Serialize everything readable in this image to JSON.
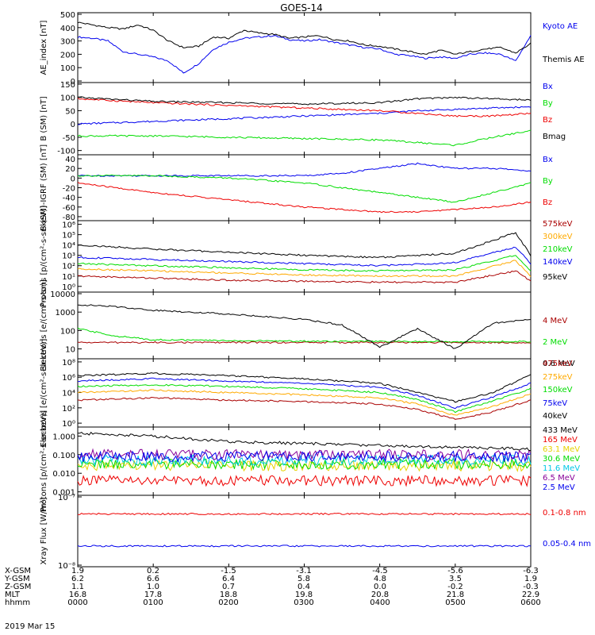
{
  "title": "GOES-14",
  "colors": {
    "black": "#000000",
    "blue": "#0000ee",
    "green": "#00dd00",
    "red": "#ee0000",
    "orange": "#ffaa00",
    "cyan": "#00c8e6",
    "purple": "#880099",
    "darkred": "#aa0000",
    "yellow": "#e6d200"
  },
  "chart_data": [
    {
      "type": "line",
      "id": "ae",
      "ylabel": "AE_index [nT]",
      "ylim": [
        0,
        500
      ],
      "yticks": [
        "0",
        "100",
        "200",
        "300",
        "400",
        "500"
      ],
      "x_range": [
        0,
        6
      ],
      "series": [
        {
          "name": "Kyoto AE",
          "color": "blue",
          "x": [
            0,
            0.2,
            0.4,
            0.6,
            0.8,
            1.0,
            1.2,
            1.4,
            1.6,
            1.8,
            2.0,
            2.2,
            2.4,
            2.6,
            2.8,
            3.0,
            3.2,
            3.4,
            3.6,
            3.8,
            4.0,
            4.2,
            4.4,
            4.6,
            4.8,
            5.0,
            5.2,
            5.4,
            5.6,
            5.8,
            6.0
          ],
          "values": [
            330,
            320,
            300,
            220,
            200,
            180,
            150,
            60,
            130,
            240,
            290,
            320,
            330,
            340,
            310,
            300,
            310,
            290,
            270,
            250,
            240,
            200,
            190,
            170,
            180,
            170,
            200,
            210,
            200,
            150,
            340
          ]
        },
        {
          "name": "Themis AE",
          "color": "black",
          "x": [
            0,
            0.2,
            0.4,
            0.6,
            0.8,
            1.0,
            1.2,
            1.4,
            1.6,
            1.8,
            2.0,
            2.2,
            2.4,
            2.6,
            2.8,
            3.0,
            3.2,
            3.4,
            3.6,
            3.8,
            4.0,
            4.2,
            4.4,
            4.6,
            4.8,
            5.0,
            5.2,
            5.4,
            5.6,
            5.8,
            6.0
          ],
          "values": [
            440,
            420,
            400,
            390,
            420,
            380,
            300,
            250,
            260,
            330,
            320,
            380,
            360,
            350,
            320,
            330,
            340,
            310,
            300,
            270,
            260,
            240,
            220,
            200,
            230,
            200,
            220,
            240,
            250,
            210,
            280
          ]
        }
      ]
    },
    {
      "type": "line",
      "id": "bsm",
      "ylabel": "B (SM) [nT]",
      "ylim": [
        -110,
        150
      ],
      "yticks": [
        "-100",
        "-50",
        "0",
        "50",
        "100",
        "150"
      ],
      "series": [
        {
          "name": "Bx",
          "color": "blue",
          "x": [
            0,
            1,
            2,
            3,
            4,
            4.5,
            5,
            5.5,
            6
          ],
          "values": [
            0,
            10,
            20,
            30,
            40,
            50,
            55,
            60,
            65
          ]
        },
        {
          "name": "By",
          "color": "green",
          "x": [
            0,
            1,
            2,
            3,
            4,
            4.5,
            5,
            5.5,
            6
          ],
          "values": [
            -45,
            -45,
            -50,
            -55,
            -60,
            -70,
            -80,
            -50,
            -25
          ]
        },
        {
          "name": "Bz",
          "color": "red",
          "x": [
            0,
            1,
            2,
            3,
            4,
            4.5,
            5,
            5.5,
            6
          ],
          "values": [
            95,
            80,
            70,
            60,
            50,
            40,
            30,
            30,
            40
          ]
        },
        {
          "name": "Bmag",
          "color": "black",
          "x": [
            0,
            1,
            2,
            3,
            4,
            4.5,
            5,
            5.5,
            6
          ],
          "values": [
            100,
            85,
            80,
            75,
            80,
            95,
            100,
            95,
            90
          ]
        }
      ]
    },
    {
      "type": "line",
      "id": "bigrf",
      "ylabel": "B (SM)-IGRF (SM) [nT]",
      "ylim": [
        -85,
        45
      ],
      "yticks": [
        "-80",
        "-60",
        "-40",
        "-20",
        "0",
        "20",
        "40"
      ],
      "series": [
        {
          "name": "Bx",
          "color": "blue",
          "x": [
            0,
            1,
            2,
            3,
            3.5,
            4,
            4.5,
            5,
            5.5,
            6
          ],
          "values": [
            5,
            5,
            5,
            5,
            10,
            20,
            30,
            20,
            20,
            15
          ]
        },
        {
          "name": "By",
          "color": "green",
          "x": [
            0,
            1,
            2,
            3,
            3.5,
            4,
            4.5,
            5,
            5.5,
            6
          ],
          "values": [
            5,
            5,
            0,
            -10,
            -20,
            -30,
            -40,
            -50,
            -30,
            -10
          ]
        },
        {
          "name": "Bz",
          "color": "red",
          "x": [
            0,
            1,
            2,
            3,
            3.5,
            4,
            4.5,
            5,
            5.5,
            6
          ],
          "values": [
            -10,
            -30,
            -45,
            -60,
            -65,
            -70,
            -70,
            -65,
            -60,
            -50
          ]
        }
      ]
    },
    {
      "type": "line",
      "id": "protons_kev",
      "log": true,
      "ylabel": "Protons [p/(cm²-s-sr-keV)]",
      "ylim_exp": [
        -0.4,
        6.2
      ],
      "ytick_exp": [
        0,
        1,
        2,
        3,
        4,
        5,
        6
      ],
      "series": [
        {
          "name": "575keV",
          "color": "darkred",
          "x": [
            0,
            1,
            2,
            3,
            4,
            5,
            5.8,
            6
          ],
          "values": [
            1.0,
            0.8,
            0.6,
            0.5,
            0.4,
            0.4,
            1.5,
            0.5
          ]
        },
        {
          "name": "300keV",
          "color": "orange",
          "x": [
            0,
            1,
            2,
            3,
            4,
            5,
            5.8,
            6
          ],
          "values": [
            1.7,
            1.5,
            1.3,
            1.1,
            1.0,
            1.0,
            2.5,
            1.0
          ]
        },
        {
          "name": "210keV",
          "color": "green",
          "x": [
            0,
            1,
            2,
            3,
            4,
            5,
            5.8,
            6
          ],
          "values": [
            2.2,
            2.0,
            1.8,
            1.6,
            1.5,
            1.6,
            3.0,
            1.5
          ]
        },
        {
          "name": "140keV",
          "color": "blue",
          "x": [
            0,
            1,
            2,
            3,
            4,
            5,
            5.8,
            6
          ],
          "values": [
            2.8,
            2.6,
            2.4,
            2.2,
            2.0,
            2.3,
            3.8,
            2.2
          ]
        },
        {
          "name": "95keV",
          "color": "black",
          "x": [
            0,
            1,
            2,
            3,
            4,
            5,
            5.8,
            6
          ],
          "values": [
            4.0,
            3.6,
            3.3,
            3.0,
            2.8,
            3.2,
            5.2,
            3.0
          ]
        }
      ]
    },
    {
      "type": "line",
      "id": "electrons_mev",
      "log": true,
      "ylabel": "Electrons [e/(cm²-s-sr)]",
      "ylim_exp": [
        0.55,
        4.0
      ],
      "ytick_labels": [
        "10",
        "100",
        "1000",
        "10000"
      ],
      "ytick_exp": [
        1,
        2,
        3,
        4
      ],
      "series": [
        {
          "name": "4 MeV",
          "color": "darkred",
          "x": [
            0,
            1,
            2,
            3,
            4,
            5,
            6
          ],
          "values": [
            1.35,
            1.35,
            1.35,
            1.35,
            1.35,
            1.35,
            1.35
          ]
        },
        {
          "name": "2 MeV",
          "color": "green",
          "x": [
            0,
            0.5,
            1,
            2,
            3,
            4,
            5,
            6
          ],
          "values": [
            2.1,
            1.7,
            1.5,
            1.45,
            1.42,
            1.4,
            1.4,
            1.4
          ]
        },
        {
          "name": "0.6 MeV",
          "color": "black",
          "x": [
            0,
            0.5,
            1,
            2,
            3,
            3.5,
            4,
            4.5,
            5,
            5.5,
            6
          ],
          "values": [
            3.4,
            3.3,
            3.1,
            2.9,
            2.6,
            2.3,
            1.1,
            2.1,
            1.0,
            2.4,
            2.6
          ]
        }
      ]
    },
    {
      "type": "line",
      "id": "electrons_kev",
      "log": true,
      "ylabel": "Electrons [e/(cm²-s-sr-keV)]",
      "ylim_exp": [
        -0.3,
        8.2
      ],
      "ytick_exp": [
        0,
        2,
        4,
        6,
        8
      ],
      "series": [
        {
          "name": "475keV",
          "color": "darkred",
          "x": [
            0,
            1,
            2,
            3,
            4,
            4.5,
            5,
            5.5,
            6
          ],
          "values": [
            3.0,
            3.3,
            3.0,
            2.8,
            2.5,
            1.8,
            0.5,
            1.5,
            3.0
          ]
        },
        {
          "name": "275keV",
          "color": "orange",
          "x": [
            0,
            1,
            2,
            3,
            4,
            4.5,
            5,
            5.5,
            6
          ],
          "values": [
            4.0,
            4.3,
            4.0,
            3.7,
            3.3,
            2.5,
            1.0,
            2.2,
            3.8
          ]
        },
        {
          "name": "150keV",
          "color": "green",
          "x": [
            0,
            1,
            2,
            3,
            4,
            4.5,
            5,
            5.5,
            6
          ],
          "values": [
            4.8,
            5.0,
            4.8,
            4.5,
            4.0,
            3.1,
            1.5,
            2.9,
            4.5
          ]
        },
        {
          "name": "75keV",
          "color": "blue",
          "x": [
            0,
            1,
            2,
            3,
            4,
            4.5,
            5,
            5.5,
            6
          ],
          "values": [
            5.5,
            5.8,
            5.5,
            5.2,
            4.7,
            3.6,
            2.0,
            3.4,
            5.2
          ]
        },
        {
          "name": "40keV",
          "color": "black",
          "x": [
            0,
            1,
            2,
            3,
            4,
            4.5,
            5,
            5.5,
            6
          ],
          "values": [
            6.2,
            6.5,
            6.2,
            5.8,
            5.2,
            4.0,
            2.8,
            4.0,
            6.3
          ]
        }
      ]
    },
    {
      "type": "line",
      "id": "protons_mev",
      "log": true,
      "ylabel": "Protons [p/(cm²-s-sr-keV)]",
      "ylim_exp": [
        -3.1,
        0.4
      ],
      "ytick_labels": [
        "0.001",
        "0.010",
        "0.100",
        "1.000"
      ],
      "ytick_exp": [
        -3,
        -2,
        -1,
        0
      ],
      "series": [
        {
          "name": "433 MeV",
          "color": "black",
          "x": [
            0,
            1,
            2,
            3,
            4,
            5,
            6
          ],
          "values": [
            0.15,
            0.0,
            -0.3,
            -0.4,
            -0.5,
            -0.6,
            -0.7
          ]
        },
        {
          "name": "165 MeV",
          "color": "red",
          "x": [
            0,
            6
          ],
          "values": [
            -2.4,
            -2.4
          ]
        },
        {
          "name": "63.1 MeV",
          "color": "yellow",
          "x": [
            0,
            6
          ],
          "values": [
            -1.6,
            -1.6
          ]
        },
        {
          "name": "30.6 MeV",
          "color": "green",
          "x": [
            0,
            6
          ],
          "values": [
            -1.5,
            -1.5
          ]
        },
        {
          "name": "11.6 MeV",
          "color": "cyan",
          "x": [
            0,
            6
          ],
          "values": [
            -1.3,
            -1.3
          ]
        },
        {
          "name": "6.5 MeV",
          "color": "purple",
          "x": [
            0,
            6
          ],
          "values": [
            -1.0,
            -1.0
          ]
        },
        {
          "name": "2.5 MeV",
          "color": "blue",
          "x": [
            0,
            6
          ],
          "values": [
            -1.1,
            -1.1
          ]
        }
      ]
    },
    {
      "type": "line",
      "id": "xray",
      "log": true,
      "ylabel": "Xray Flux [W/m²]",
      "ylim_exp": [
        -8,
        -7
      ],
      "ytick_labels": [
        "10⁻⁸",
        "10⁻⁷"
      ],
      "ytick_exp": [
        -8,
        -7
      ],
      "series": [
        {
          "name": "0.1-0.8 nm",
          "color": "red",
          "x": [
            0,
            6
          ],
          "values": [
            -7.25,
            -7.25
          ]
        },
        {
          "name": "0.05-0.4 nm",
          "color": "blue",
          "x": [
            0,
            6
          ],
          "values": [
            -7.72,
            -7.72
          ]
        }
      ]
    }
  ],
  "ephemeris": {
    "rows": [
      {
        "label": "X-GSM",
        "values": [
          "1.9",
          "0.2",
          "-1.5",
          "-3.1",
          "-4.5",
          "-5.6",
          "-6.3"
        ]
      },
      {
        "label": "Y-GSM",
        "values": [
          "6.2",
          "6.6",
          "6.4",
          "5.8",
          "4.8",
          "3.5",
          "1.9"
        ]
      },
      {
        "label": "Z-GSM",
        "values": [
          "1.1",
          "1.0",
          "0.7",
          "0.4",
          "0.0",
          "-0.2",
          "-0.3"
        ]
      },
      {
        "label": "MLT",
        "values": [
          "16.8",
          "17.8",
          "18.8",
          "19.8",
          "20.8",
          "21.8",
          "22.9"
        ]
      },
      {
        "label": "hhmm",
        "values": [
          "0000",
          "0100",
          "0200",
          "0300",
          "0400",
          "0500",
          "0600"
        ]
      }
    ],
    "date": "2019 Mar 15"
  }
}
